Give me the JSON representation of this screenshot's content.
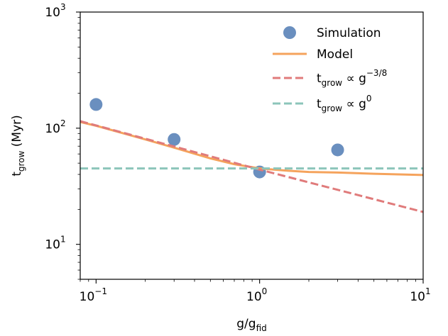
{
  "chart_data": {
    "type": "scatter",
    "xscale": "log",
    "yscale": "log",
    "xlim": [
      0.08,
      10
    ],
    "ylim": [
      5,
      1000
    ],
    "grid": false,
    "legend_position": "top-right",
    "xlabel": {
      "base": "g/g",
      "sub": "fid"
    },
    "ylabel": {
      "base": "t",
      "sub": "grow",
      "rest": " (Myr)"
    },
    "x_major_ticks": [
      {
        "value": 0.1,
        "base": "10",
        "exp": "−1"
      },
      {
        "value": 1,
        "base": "10",
        "exp": "0"
      },
      {
        "value": 10,
        "base": "10",
        "exp": "1"
      }
    ],
    "y_major_ticks": [
      {
        "value": 10,
        "base": "10",
        "exp": "1"
      },
      {
        "value": 100,
        "base": "10",
        "exp": "2"
      },
      {
        "value": 1000,
        "base": "10",
        "exp": "3"
      }
    ],
    "series": [
      {
        "kind": "scatter",
        "color": "#6a8fbf",
        "legend": {
          "base": "Simulation"
        },
        "points": [
          {
            "x": 0.1,
            "y": 160
          },
          {
            "x": 0.3,
            "y": 80
          },
          {
            "x": 1,
            "y": 42
          },
          {
            "x": 3,
            "y": 65
          }
        ]
      },
      {
        "kind": "line",
        "style": "solid",
        "color": "#f5a35c",
        "legend": {
          "base": "Model"
        },
        "points": [
          {
            "x": 0.08,
            "y": 113
          },
          {
            "x": 0.1,
            "y": 105
          },
          {
            "x": 0.2,
            "y": 80
          },
          {
            "x": 0.3,
            "y": 68
          },
          {
            "x": 0.5,
            "y": 55
          },
          {
            "x": 0.7,
            "y": 49
          },
          {
            "x": 1,
            "y": 45
          },
          {
            "x": 1.5,
            "y": 43
          },
          {
            "x": 2,
            "y": 42
          },
          {
            "x": 3,
            "y": 41.5
          },
          {
            "x": 5,
            "y": 40.5
          },
          {
            "x": 10,
            "y": 39.5
          }
        ]
      },
      {
        "kind": "line",
        "style": "dashed",
        "color": "#e07b7b",
        "legend": {
          "base": "t",
          "sub": "grow",
          "rest": " ∝  g",
          "sup": "−3/8"
        },
        "points": [
          {
            "x": 0.08,
            "y": 115
          },
          {
            "x": 1,
            "y": 44
          },
          {
            "x": 10,
            "y": 19
          }
        ]
      },
      {
        "kind": "line",
        "style": "dashed",
        "color": "#8cc5ba",
        "legend": {
          "base": "t",
          "sub": "grow",
          "rest": " ∝  g",
          "sup": "0"
        },
        "points": [
          {
            "x": 0.08,
            "y": 45
          },
          {
            "x": 10,
            "y": 45
          }
        ]
      }
    ]
  }
}
